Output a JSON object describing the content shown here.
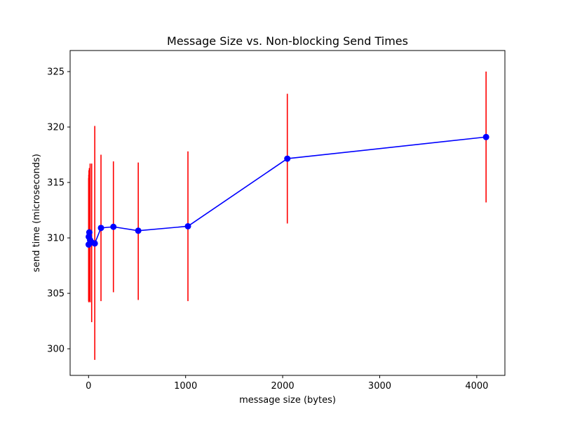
{
  "chart_data": {
    "type": "line",
    "title": "Message Size vs. Non-blocking Send Times",
    "xlabel": "message size (bytes)",
    "ylabel": "send time (microseconds)",
    "xlim": [
      -190,
      4290
    ],
    "ylim": [
      297.6,
      326.9
    ],
    "xticks": [
      0,
      1000,
      2000,
      3000,
      4000
    ],
    "yticks": [
      300,
      305,
      310,
      315,
      320,
      325
    ],
    "grid": false,
    "line_color": "#0000ff",
    "errorbar_color": "#ff0000",
    "series": [
      {
        "x": [
          1,
          2,
          4,
          8,
          16,
          32,
          64,
          128,
          256,
          512,
          1024,
          2048,
          4096
        ],
        "y": [
          309.4,
          310.1,
          310.1,
          310.5,
          309.8,
          309.6,
          309.5,
          310.9,
          311.0,
          310.65,
          311.05,
          317.15,
          319.1
        ],
        "y_lower": [
          304.3,
          304.2,
          304.3,
          304.3,
          304.2,
          302.4,
          299.0,
          304.3,
          305.1,
          304.4,
          304.3,
          311.3,
          313.2
        ],
        "y_upper": [
          315.4,
          315.7,
          316.1,
          316.3,
          316.7,
          316.7,
          320.1,
          317.5,
          316.9,
          316.8,
          317.8,
          323.0,
          325.0
        ]
      }
    ]
  }
}
